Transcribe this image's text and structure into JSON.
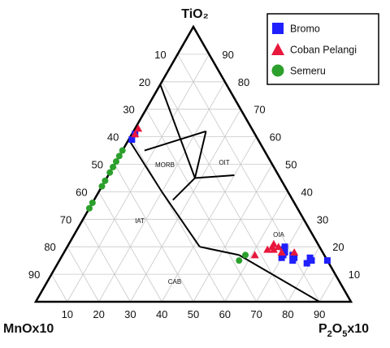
{
  "chart_data": {
    "type": "scatter",
    "subtype": "ternary",
    "apices": {
      "top": "TiO₂",
      "left_base": "MnOx10",
      "left_base_sub": "",
      "right_base": "P",
      "right_base_sub": "2",
      "right_base_mid": "O",
      "right_base_sub2": "5",
      "right_base_tail": "x10"
    },
    "ticks": [
      10,
      20,
      30,
      40,
      50,
      60,
      70,
      80,
      90
    ],
    "grid": true,
    "fields": [
      "MORB",
      "OIT",
      "IAT",
      "OIA",
      "CAB"
    ],
    "boundaries": [
      {
        "name": "MORB-OIT",
        "points": [
          [
            0.79,
            0.21,
            0.0
          ],
          [
            0.45,
            0.27,
            0.28
          ]
        ]
      },
      {
        "name": "IAT-MORB",
        "points": [
          [
            0.62,
            0.15,
            0.23
          ],
          [
            0.45,
            0.27,
            0.28
          ]
        ]
      },
      {
        "name": "IAT-MORB-upper",
        "points": [
          [
            0.62,
            0.15,
            0.23
          ],
          [
            0.55,
            0.38,
            0.07
          ]
        ]
      },
      {
        "name": "OIT-OIA",
        "points": [
          [
            0.45,
            0.27,
            0.28
          ],
          [
            0.37,
            0.38,
            0.25
          ]
        ]
      },
      {
        "name": "IAT-CAB",
        "points": [
          [
            0.4,
            0.4,
            0.2
          ],
          [
            0.2,
            0.38,
            0.42
          ]
        ]
      },
      {
        "name": "left-edge-divider",
        "points": [
          [
            0.59,
            0.41,
            0.0
          ],
          [
            0.4,
            0.4,
            0.2
          ]
        ]
      },
      {
        "name": "OIA-CAB",
        "points": [
          [
            0.2,
            0.38,
            0.42
          ],
          [
            0.17,
            0.27,
            0.56
          ]
        ]
      },
      {
        "name": "CAB-OIA-base",
        "points": [
          [
            0.17,
            0.27,
            0.56
          ],
          [
            0.0,
            0.1,
            0.9
          ]
        ]
      },
      {
        "name": "OIT-upper",
        "points": [
          [
            0.45,
            0.27,
            0.28
          ],
          [
            0.46,
            0.14,
            0.4
          ]
        ]
      }
    ],
    "legend": {
      "position": "top-right",
      "items": [
        {
          "label": "Bromo",
          "marker": "square",
          "color": "#1f1fff"
        },
        {
          "label": "Coban Pelangi",
          "marker": "triangle",
          "color": "#e8173c"
        },
        {
          "label": "Semeru",
          "marker": "circle",
          "color": "#2ca02c"
        }
      ]
    },
    "series": [
      {
        "name": "Bromo",
        "marker": "square",
        "color": "#1f1fff",
        "points": [
          {
            "TiO2": 0.2,
            "MnO": 0.11,
            "P2O5": 0.69
          },
          {
            "TiO2": 0.19,
            "MnO": 0.12,
            "P2O5": 0.69
          },
          {
            "TiO2": 0.18,
            "MnO": 0.12,
            "P2O5": 0.7
          },
          {
            "TiO2": 0.17,
            "MnO": 0.13,
            "P2O5": 0.7
          },
          {
            "TiO2": 0.16,
            "MnO": 0.14,
            "P2O5": 0.7
          },
          {
            "TiO2": 0.17,
            "MnO": 0.1,
            "P2O5": 0.73
          },
          {
            "TiO2": 0.16,
            "MnO": 0.1,
            "P2O5": 0.74
          },
          {
            "TiO2": 0.15,
            "MnO": 0.11,
            "P2O5": 0.74
          },
          {
            "TiO2": 0.16,
            "MnO": 0.05,
            "P2O5": 0.79
          },
          {
            "TiO2": 0.15,
            "MnO": 0.05,
            "P2O5": 0.8
          },
          {
            "TiO2": 0.14,
            "MnO": 0.07,
            "P2O5": 0.79
          },
          {
            "TiO2": 0.15,
            "MnO": 0.0,
            "P2O5": 0.85
          },
          {
            "TiO2": 0.59,
            "MnO": 0.4,
            "P2O5": 0.01
          },
          {
            "TiO2": 0.61,
            "MnO": 0.38,
            "P2O5": 0.01
          }
        ]
      },
      {
        "name": "Coban Pelangi",
        "marker": "triangle",
        "color": "#e8173c",
        "points": [
          {
            "TiO2": 0.21,
            "MnO": 0.14,
            "P2O5": 0.65
          },
          {
            "TiO2": 0.2,
            "MnO": 0.15,
            "P2O5": 0.65
          },
          {
            "TiO2": 0.19,
            "MnO": 0.15,
            "P2O5": 0.66
          },
          {
            "TiO2": 0.2,
            "MnO": 0.13,
            "P2O5": 0.67
          },
          {
            "TiO2": 0.18,
            "MnO": 0.13,
            "P2O5": 0.69
          },
          {
            "TiO2": 0.19,
            "MnO": 0.17,
            "P2O5": 0.64
          },
          {
            "TiO2": 0.17,
            "MnO": 0.22,
            "P2O5": 0.61
          },
          {
            "TiO2": 0.18,
            "MnO": 0.09,
            "P2O5": 0.73
          },
          {
            "TiO2": 0.63,
            "MnO": 0.36,
            "P2O5": 0.01
          },
          {
            "TiO2": 0.61,
            "MnO": 0.38,
            "P2O5": 0.01
          }
        ]
      },
      {
        "name": "Semeru",
        "marker": "circle",
        "color": "#2ca02c",
        "points": [
          {
            "TiO2": 0.55,
            "MnO": 0.45,
            "P2O5": 0.0
          },
          {
            "TiO2": 0.53,
            "MnO": 0.47,
            "P2O5": 0.0
          },
          {
            "TiO2": 0.51,
            "MnO": 0.49,
            "P2O5": 0.0
          },
          {
            "TiO2": 0.49,
            "MnO": 0.51,
            "P2O5": 0.0
          },
          {
            "TiO2": 0.47,
            "MnO": 0.53,
            "P2O5": 0.0
          },
          {
            "TiO2": 0.44,
            "MnO": 0.56,
            "P2O5": 0.0
          },
          {
            "TiO2": 0.42,
            "MnO": 0.58,
            "P2O5": 0.0
          },
          {
            "TiO2": 0.36,
            "MnO": 0.64,
            "P2O5": 0.0
          },
          {
            "TiO2": 0.34,
            "MnO": 0.66,
            "P2O5": 0.0
          },
          {
            "TiO2": 0.17,
            "MnO": 0.25,
            "P2O5": 0.58
          },
          {
            "TiO2": 0.15,
            "MnO": 0.28,
            "P2O5": 0.57
          }
        ]
      }
    ]
  }
}
